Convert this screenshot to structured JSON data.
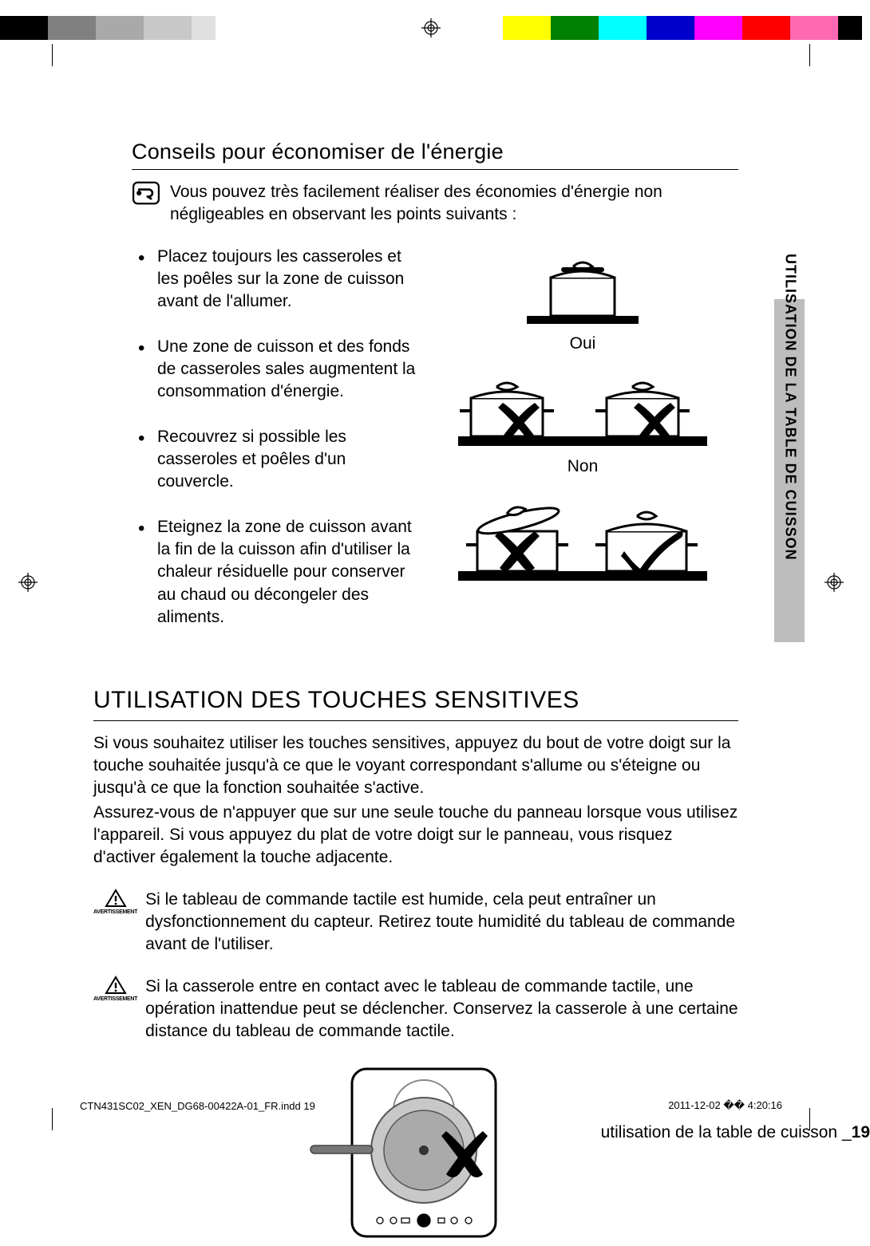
{
  "colorbar": {
    "swatches": [
      "#000000",
      "#000000",
      "#808080",
      "#808080",
      "#a9a9a9",
      "#a9a9a9",
      "#c8c8c8",
      "#c8c8c8",
      "#e0e0e0",
      "#ffffff",
      "#ffffff",
      "#ffffff",
      "#ffffff",
      "#ffffff",
      "#ffffff",
      "#ffffff",
      "#ffffff",
      "#ffffff",
      "#ffffff",
      "#ffffff",
      "#ffffff",
      "#ffff00",
      "#ffff00",
      "#008000",
      "#008000",
      "#00ffff",
      "#00ffff",
      "#0000cd",
      "#0000cd",
      "#ff00ff",
      "#ff00ff",
      "#ff0000",
      "#ff0000",
      "#ff69b4",
      "#ff69b4",
      "#000000"
    ]
  },
  "tab_label": "UTILISATION DE LA TABLE DE CUISSON",
  "section1_title": "Conseils pour économiser de l'énergie",
  "note_text": "Vous pouvez très facilement réaliser des économies d'énergie non négligeables en observant les points suivants :",
  "tips": {
    "t1": "Placez toujours les casseroles et les poêles sur la zone de cuisson avant de l'allumer.",
    "t2": "Une zone de cuisson et des fonds de casseroles sales augmentent la consommation d'énergie.",
    "t3": "Recouvrez si possible les casseroles et poêles d'un couvercle.",
    "t4": "Eteignez la zone de cuisson avant la fin de la cuisson afin d'utiliser la chaleur résiduelle pour conserver au chaud ou décongeler des aliments."
  },
  "fig_labels": {
    "yes": "Oui",
    "no": "Non"
  },
  "section2_title": "UTILISATION DES TOUCHES SENSITIVES",
  "p1": "Si vous souhaitez utiliser les touches sensitives, appuyez du bout de votre doigt sur la touche souhaitée jusqu'à ce que le voyant correspondant s'allume ou s'éteigne ou jusqu'à ce que la fonction souhaitée s'active.",
  "p2": "Assurez-vous de n'appuyer que sur une seule touche du panneau lorsque vous utilisez l'appareil. Si vous appuyez du plat de votre doigt sur le panneau, vous risquez d'activer également la touche adjacente.",
  "warn1": "Si le tableau de commande tactile est humide, cela peut entraîner un dysfonctionnement du capteur. Retirez toute humidité du tableau de commande avant de l'utiliser.",
  "warn2": "Si la casserole entre en contact avec le tableau de commande tactile, une opération inattendue peut se déclencher. Conservez la casserole à une certaine distance du tableau de commande tactile.",
  "warn_label": "AVERTISSEMENT",
  "footer": {
    "text": "utilisation de la table de cuisson _",
    "page": "19"
  },
  "slug": {
    "left": "CTN431SC02_XEN_DG68-00422A-01_FR.indd   19",
    "right": "2011-12-02   �� 4:20:16"
  },
  "style": {
    "mark_stroke": "#000000",
    "check_color": "#000000",
    "cross_color": "#000000",
    "pot_fill": "#ffffff",
    "pot_stroke": "#000000",
    "cooktop_border": "#000000",
    "cooktop_inner": "#888888",
    "warn_triangle": "#000000"
  }
}
